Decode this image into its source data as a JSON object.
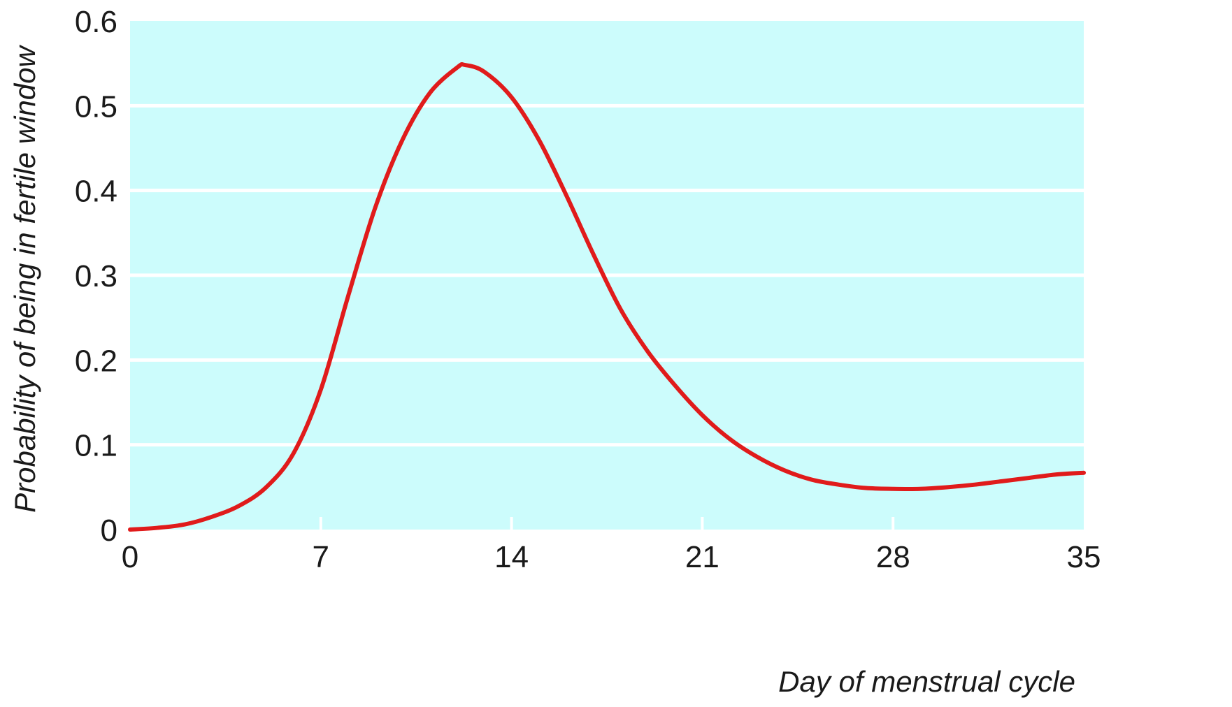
{
  "chart_data": {
    "type": "line",
    "title": "",
    "xlabel": "Day of menstrual cycle",
    "ylabel": "Probability of being in fertile window",
    "xlim": [
      0,
      35
    ],
    "ylim": [
      0,
      0.6
    ],
    "x_ticks": [
      "0",
      "7",
      "14",
      "21",
      "28",
      "35"
    ],
    "y_ticks": [
      "0",
      "0.1",
      "0.2",
      "0.3",
      "0.4",
      "0.5",
      "0.6"
    ],
    "grid": "horizontal",
    "legend": null,
    "colors": {
      "background": "#ccfcfc",
      "grid": "#ffffff",
      "line": "#e01b1b"
    },
    "series": [
      {
        "name": "Probability of being in fertile window",
        "x": [
          0,
          1,
          2,
          3,
          4,
          5,
          6,
          7,
          8,
          9,
          10,
          11,
          12,
          12.3,
          13,
          14,
          15,
          16,
          17,
          18,
          19,
          20,
          21,
          22,
          23,
          24,
          25,
          26,
          27,
          28,
          29,
          30,
          31,
          32,
          33,
          34,
          35
        ],
        "values": [
          0.0,
          0.002,
          0.006,
          0.015,
          0.028,
          0.05,
          0.09,
          0.165,
          0.275,
          0.38,
          0.46,
          0.515,
          0.545,
          0.548,
          0.54,
          0.51,
          0.46,
          0.395,
          0.325,
          0.26,
          0.21,
          0.17,
          0.135,
          0.107,
          0.086,
          0.07,
          0.059,
          0.053,
          0.049,
          0.048,
          0.048,
          0.05,
          0.053,
          0.057,
          0.061,
          0.065,
          0.067
        ]
      }
    ]
  }
}
